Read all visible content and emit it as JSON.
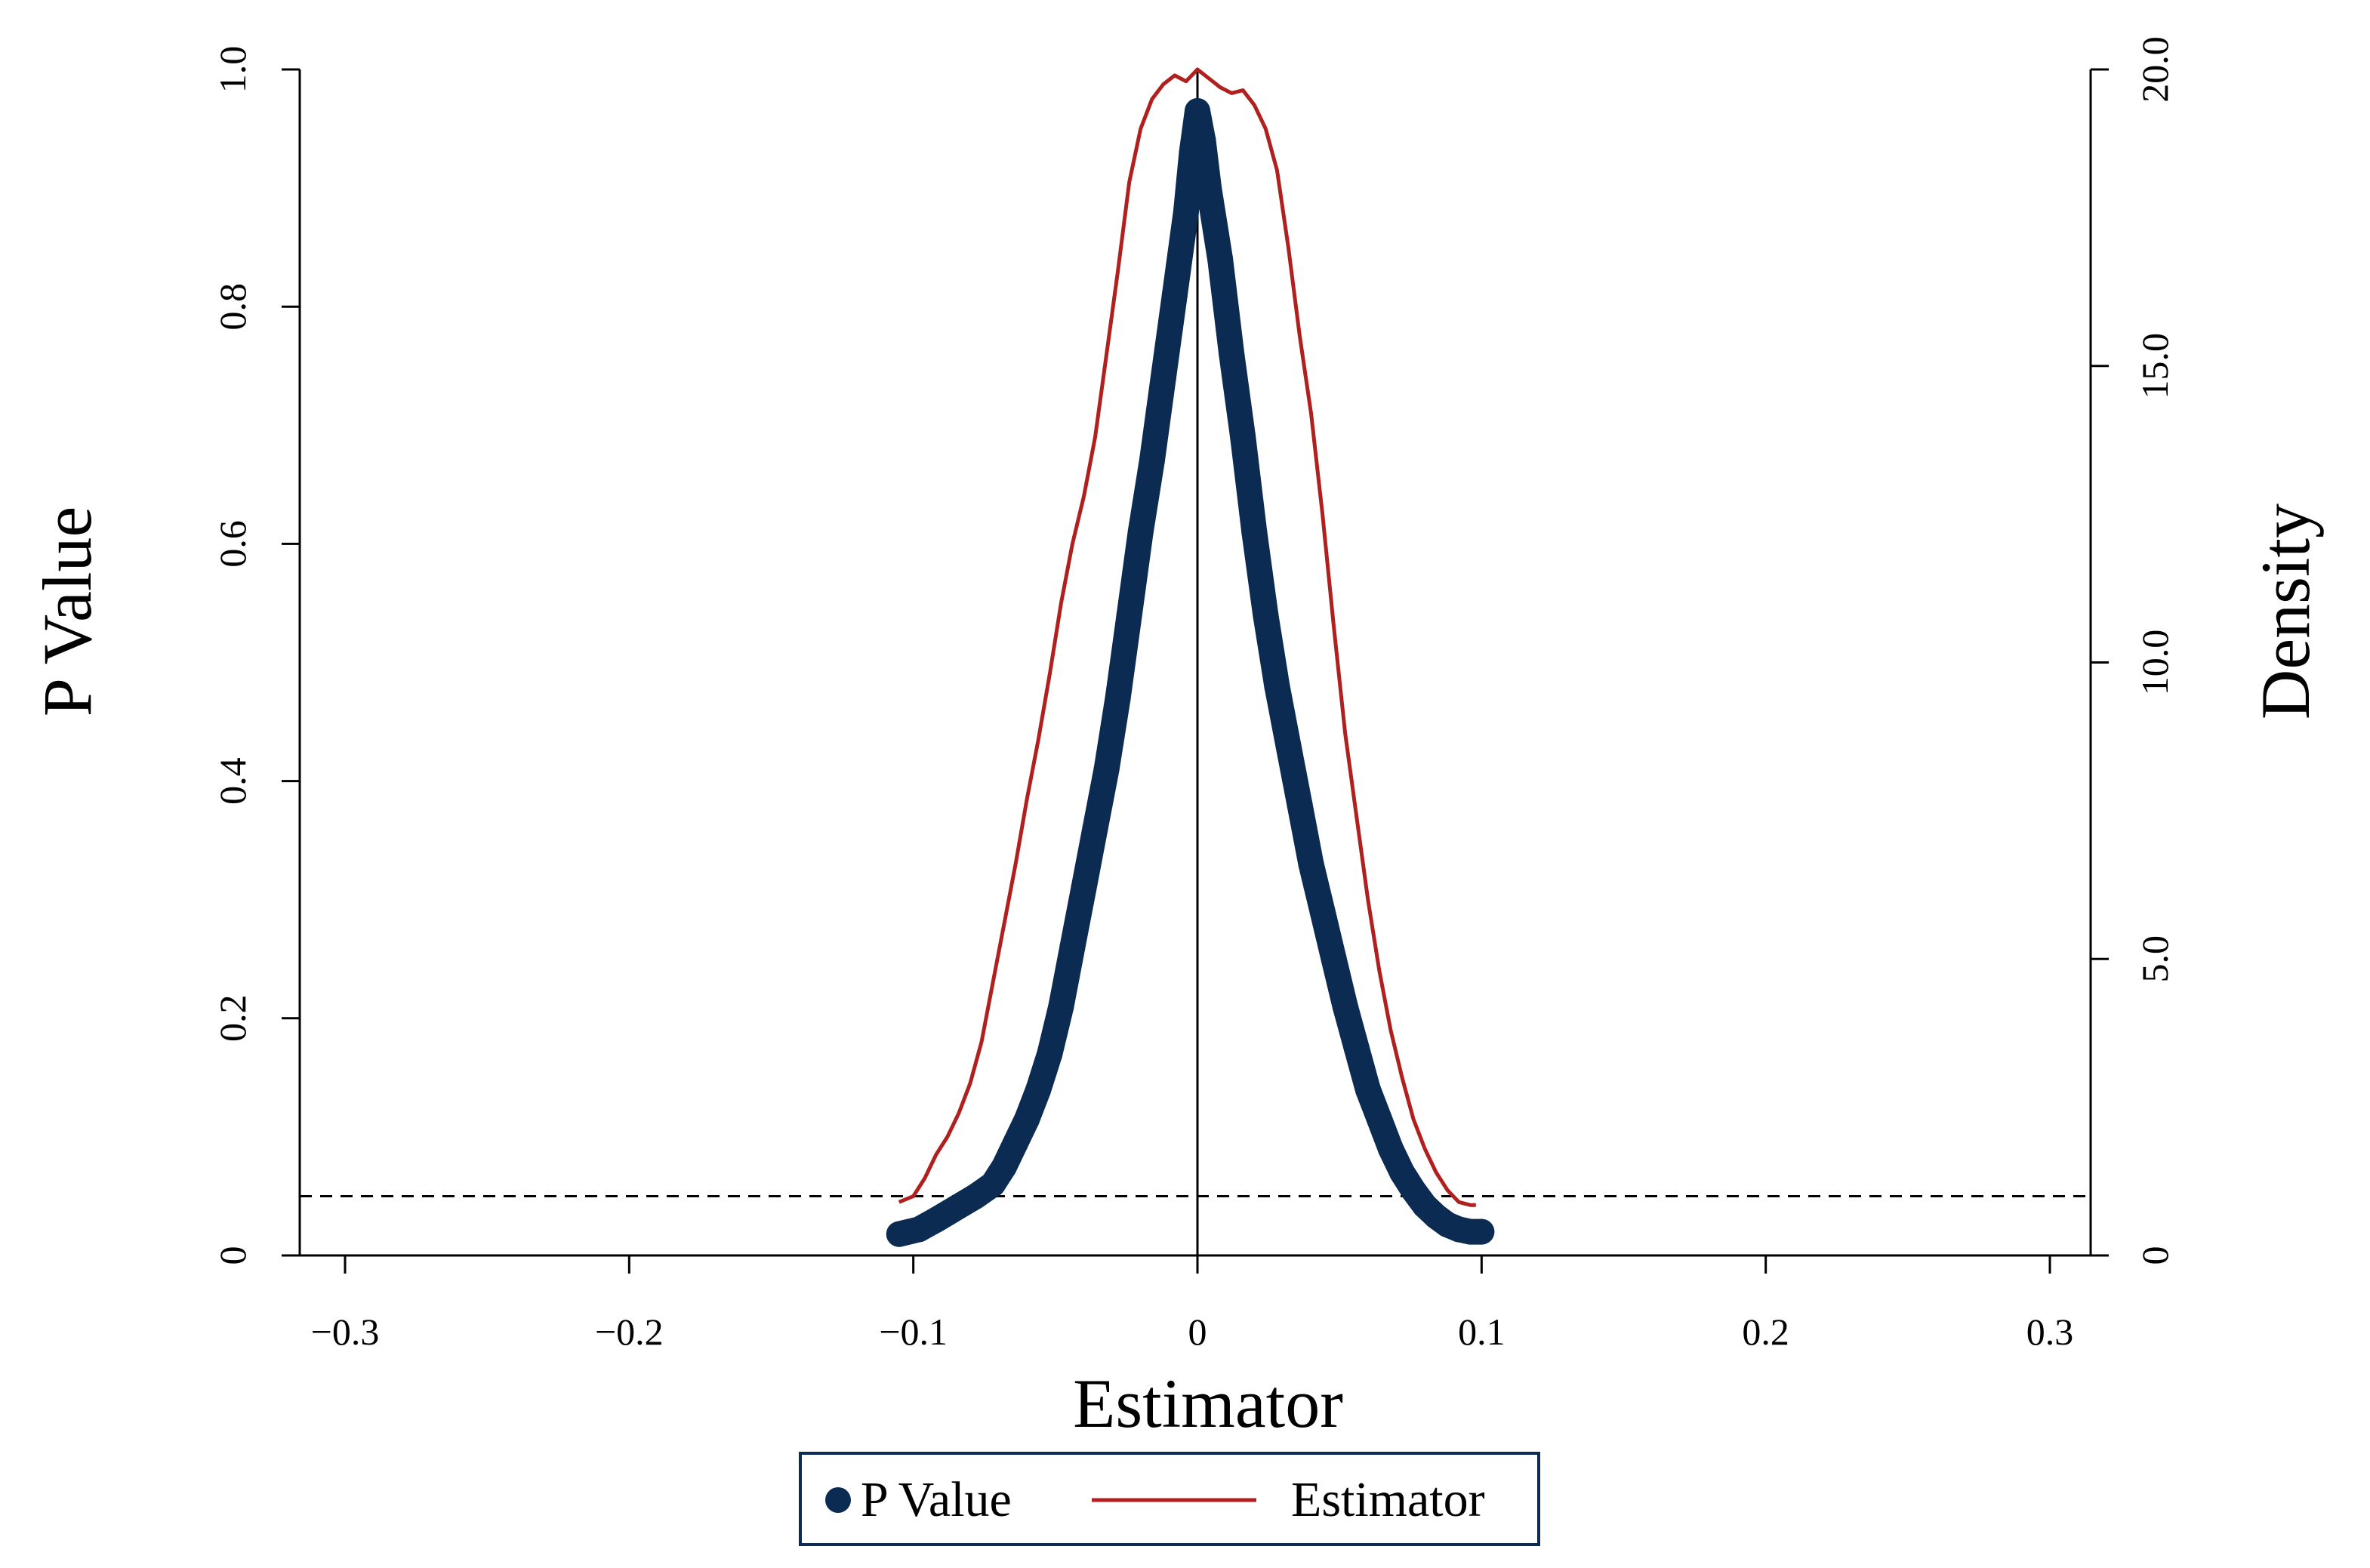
{
  "chart_data": {
    "type": "line",
    "xlabel": "Estimator",
    "ylabel_left": "P Value",
    "ylabel_right": "Density",
    "xlim": [
      -0.3,
      0.3
    ],
    "ylim_left": [
      0,
      1.0
    ],
    "ylim_right": [
      0,
      20.0
    ],
    "x_ticks": [
      {
        "value": -0.3,
        "label": "−0.3"
      },
      {
        "value": -0.2,
        "label": "−0.2"
      },
      {
        "value": -0.1,
        "label": "−0.1"
      },
      {
        "value": 0,
        "label": "0"
      },
      {
        "value": 0.1,
        "label": "0.1"
      },
      {
        "value": 0.2,
        "label": "0.2"
      },
      {
        "value": 0.3,
        "label": "0.3"
      }
    ],
    "y_left_ticks": [
      {
        "value": 0,
        "label": "0"
      },
      {
        "value": 0.2,
        "label": "0.2"
      },
      {
        "value": 0.4,
        "label": "0.4"
      },
      {
        "value": 0.6,
        "label": "0.6"
      },
      {
        "value": 0.8,
        "label": "0.8"
      },
      {
        "value": 1.0,
        "label": "1.0"
      }
    ],
    "y_right_ticks": [
      {
        "value": 0,
        "label": "0"
      },
      {
        "value": 5,
        "label": "5.0"
      },
      {
        "value": 10,
        "label": "10.0"
      },
      {
        "value": 15,
        "label": "15.0"
      },
      {
        "value": 20,
        "label": "20.0"
      }
    ],
    "reference_lines": {
      "horizontal_p": 0.05,
      "vertical_x": 0
    },
    "legend": {
      "position": "bottom-center"
    },
    "series": [
      {
        "name": "P Value",
        "axis": "left",
        "color": "#0c2b52",
        "style": "thick-markers",
        "x": [
          -0.105,
          -0.098,
          -0.092,
          -0.085,
          -0.078,
          -0.072,
          -0.068,
          -0.064,
          -0.06,
          -0.056,
          -0.052,
          -0.048,
          -0.044,
          -0.04,
          -0.036,
          -0.032,
          -0.028,
          -0.024,
          -0.02,
          -0.016,
          -0.012,
          -0.008,
          -0.004,
          -0.002,
          0,
          0.002,
          0.004,
          0.008,
          0.012,
          0.016,
          0.02,
          0.024,
          0.028,
          0.032,
          0.036,
          0.04,
          0.044,
          0.048,
          0.052,
          0.056,
          0.06,
          0.064,
          0.068,
          0.072,
          0.076,
          0.08,
          0.084,
          0.088,
          0.092,
          0.096,
          0.1
        ],
        "y": [
          0.018,
          0.022,
          0.03,
          0.04,
          0.05,
          0.06,
          0.075,
          0.095,
          0.115,
          0.14,
          0.17,
          0.21,
          0.26,
          0.31,
          0.36,
          0.41,
          0.47,
          0.54,
          0.61,
          0.67,
          0.74,
          0.81,
          0.88,
          0.93,
          0.965,
          0.94,
          0.9,
          0.84,
          0.76,
          0.69,
          0.61,
          0.54,
          0.48,
          0.43,
          0.38,
          0.33,
          0.29,
          0.25,
          0.21,
          0.175,
          0.14,
          0.115,
          0.09,
          0.07,
          0.055,
          0.042,
          0.033,
          0.026,
          0.022,
          0.02,
          0.02
        ]
      },
      {
        "name": "Estimator",
        "axis": "right",
        "color": "#b0201e",
        "style": "thin-line",
        "x": [
          -0.105,
          -0.1,
          -0.096,
          -0.092,
          -0.088,
          -0.084,
          -0.08,
          -0.076,
          -0.072,
          -0.068,
          -0.064,
          -0.06,
          -0.056,
          -0.052,
          -0.048,
          -0.044,
          -0.04,
          -0.036,
          -0.032,
          -0.028,
          -0.024,
          -0.02,
          -0.016,
          -0.012,
          -0.008,
          -0.004,
          0,
          0.004,
          0.008,
          0.012,
          0.016,
          0.02,
          0.024,
          0.028,
          0.032,
          0.036,
          0.04,
          0.044,
          0.048,
          0.052,
          0.056,
          0.06,
          0.064,
          0.068,
          0.072,
          0.076,
          0.08,
          0.084,
          0.088,
          0.092,
          0.096,
          0.098
        ],
        "y": [
          0.9,
          1.0,
          1.3,
          1.7,
          2.0,
          2.4,
          2.9,
          3.6,
          4.6,
          5.6,
          6.6,
          7.7,
          8.7,
          9.8,
          11.0,
          12.0,
          12.8,
          13.8,
          15.2,
          16.6,
          18.1,
          19.0,
          19.5,
          19.75,
          19.9,
          19.8,
          20.0,
          19.85,
          19.7,
          19.6,
          19.65,
          19.4,
          19.0,
          18.3,
          17.0,
          15.5,
          14.2,
          12.5,
          10.6,
          8.8,
          7.4,
          6.0,
          4.8,
          3.8,
          3.0,
          2.3,
          1.8,
          1.4,
          1.1,
          0.9,
          0.85,
          0.85
        ]
      }
    ]
  }
}
